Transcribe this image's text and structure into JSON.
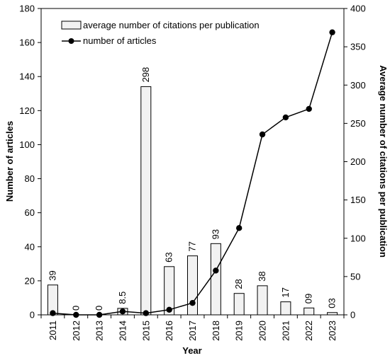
{
  "chart_data": {
    "type": "bar+line",
    "categories": [
      "2011",
      "2012",
      "2013",
      "2014",
      "2015",
      "2016",
      "2017",
      "2018",
      "2019",
      "2020",
      "2021",
      "2022",
      "2023"
    ],
    "series": [
      {
        "name": "average number of citations per publication",
        "type": "bar",
        "axis": "right",
        "values": [
          39,
          0,
          0,
          8.5,
          298,
          63,
          77,
          93,
          28,
          38,
          17,
          9,
          3
        ],
        "labels": [
          "39",
          "0",
          "0",
          "8.5",
          "298",
          "63",
          "77",
          "93",
          "28",
          "38",
          "17",
          "09",
          "03"
        ],
        "color": "#f2f2f2",
        "edge_color": "#000000"
      },
      {
        "name": "number of articles",
        "type": "line",
        "axis": "left",
        "values": [
          1,
          0,
          0,
          2,
          1,
          3,
          7,
          26,
          51,
          106,
          116,
          121,
          166
        ],
        "color": "#000000"
      }
    ],
    "xlabel": "Year",
    "ylabel": "Number of articles",
    "y2label": "Average number of citations per publication",
    "ylim": [
      0,
      180
    ],
    "y2lim": [
      0,
      400
    ],
    "yticks": [
      "0",
      "20",
      "40",
      "60",
      "80",
      "100",
      "120",
      "140",
      "160",
      "180"
    ],
    "y2ticks": [
      "0",
      "50",
      "100",
      "150",
      "200",
      "250",
      "300",
      "350",
      "400"
    ],
    "legend_position": "top-left",
    "grid": false
  }
}
